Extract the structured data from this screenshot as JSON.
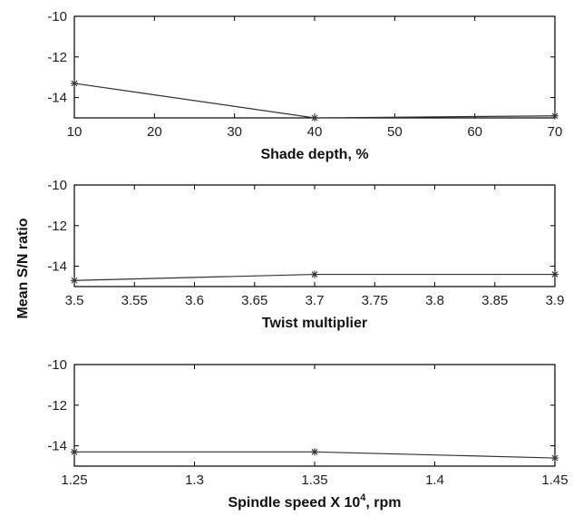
{
  "ylabel": "Mean S/N ratio",
  "chart_data": [
    {
      "type": "line",
      "xlabel": "Shade depth, %",
      "x": [
        10,
        40,
        70
      ],
      "y": [
        -13.3,
        -15.0,
        -14.9
      ],
      "xlim": [
        10,
        70
      ],
      "ylim": [
        -15,
        -10
      ],
      "xticks": [
        10,
        20,
        30,
        40,
        50,
        60,
        70
      ],
      "xtick_labels": [
        "10",
        "20",
        "30",
        "40",
        "50",
        "60",
        "70"
      ],
      "yticks": [
        -14,
        -12,
        -10
      ],
      "ytick_labels": [
        "-14",
        "-12",
        "-10"
      ],
      "marker": "asterisk"
    },
    {
      "type": "line",
      "xlabel": "Twist multiplier",
      "x": [
        3.5,
        3.7,
        3.9
      ],
      "y": [
        -14.7,
        -14.4,
        -14.4
      ],
      "xlim": [
        3.5,
        3.9
      ],
      "ylim": [
        -15,
        -10
      ],
      "xticks": [
        3.5,
        3.55,
        3.6,
        3.65,
        3.7,
        3.75,
        3.8,
        3.85,
        3.9
      ],
      "xtick_labels": [
        "3.5",
        "3.55",
        "3.6",
        "3.65",
        "3.7",
        "3.75",
        "3.8",
        "3.85",
        "3.9"
      ],
      "yticks": [
        -14,
        -12,
        -10
      ],
      "ytick_labels": [
        "-14",
        "-12",
        "-10"
      ],
      "marker": "asterisk"
    },
    {
      "type": "line",
      "xlabel": "Spindle speed X 10",
      "xlabel_sup": "4",
      "xlabel_suffix": ", rpm",
      "x": [
        1.25,
        1.35,
        1.45
      ],
      "y": [
        -14.3,
        -14.3,
        -14.6
      ],
      "xlim": [
        1.25,
        1.45
      ],
      "ylim": [
        -15,
        -10
      ],
      "xticks": [
        1.25,
        1.3,
        1.35,
        1.4,
        1.45
      ],
      "xtick_labels": [
        "1.25",
        "1.3",
        "1.35",
        "1.4",
        "1.45"
      ],
      "yticks": [
        -14,
        -12,
        -10
      ],
      "ytick_labels": [
        "-14",
        "-12",
        "-10"
      ],
      "marker": "asterisk"
    }
  ]
}
